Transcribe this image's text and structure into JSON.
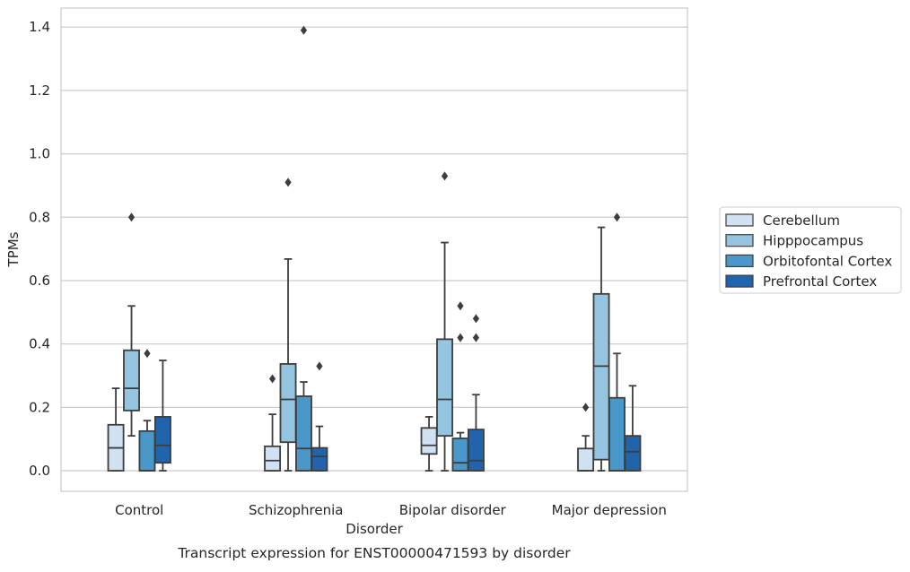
{
  "chart_data": {
    "type": "box",
    "title": "",
    "caption": "Transcript expression for ENST00000471593 by disorder",
    "xlabel": "Disorder",
    "ylabel": "TPMs",
    "ylim": [
      -0.065,
      1.46
    ],
    "yticks": [
      0.0,
      0.2,
      0.4,
      0.6,
      0.8,
      1.0,
      1.2,
      1.4
    ],
    "ytick_labels": [
      "0.0",
      "0.2",
      "0.4",
      "0.6",
      "0.8",
      "1.0",
      "1.2",
      "1.4"
    ],
    "grid": "horizontal",
    "legend_position": "right",
    "categories": [
      "Control",
      "Schizophrenia",
      "Bipolar disorder",
      "Major depression"
    ],
    "series": [
      {
        "name": "Cerebellum",
        "color": "#d0e1f2",
        "boxes": [
          {
            "whislo": 0.0,
            "q1": 0.0,
            "med": 0.072,
            "q3": 0.145,
            "whishi": 0.26,
            "fliers": []
          },
          {
            "whislo": 0.0,
            "q1": 0.0,
            "med": 0.032,
            "q3": 0.077,
            "whishi": 0.178,
            "fliers": [
              0.29
            ]
          },
          {
            "whislo": 0.0,
            "q1": 0.053,
            "med": 0.08,
            "q3": 0.135,
            "whishi": 0.17,
            "fliers": []
          },
          {
            "whislo": 0.0,
            "q1": 0.0,
            "med": 0.0,
            "q3": 0.07,
            "whishi": 0.11,
            "fliers": [
              0.2
            ]
          }
        ]
      },
      {
        "name": "Hipppocampus",
        "color": "#94c4df",
        "boxes": [
          {
            "whislo": 0.11,
            "q1": 0.19,
            "med": 0.26,
            "q3": 0.38,
            "whishi": 0.52,
            "fliers": [
              0.8
            ]
          },
          {
            "whislo": 0.0,
            "q1": 0.09,
            "med": 0.225,
            "q3": 0.337,
            "whishi": 0.668,
            "fliers": [
              0.91
            ]
          },
          {
            "whislo": 0.0,
            "q1": 0.11,
            "med": 0.225,
            "q3": 0.415,
            "whishi": 0.72,
            "fliers": [
              0.93
            ]
          },
          {
            "whislo": 0.0,
            "q1": 0.035,
            "med": 0.33,
            "q3": 0.558,
            "whishi": 0.768,
            "fliers": []
          }
        ]
      },
      {
        "name": "Orbitofontal Cortex",
        "color": "#4a98c9",
        "boxes": [
          {
            "whislo": 0.0,
            "q1": 0.0,
            "med": 0.0,
            "q3": 0.125,
            "whishi": 0.158,
            "fliers": [
              0.37
            ]
          },
          {
            "whislo": 0.0,
            "q1": 0.0,
            "med": 0.07,
            "q3": 0.235,
            "whishi": 0.28,
            "fliers": [
              1.39
            ]
          },
          {
            "whislo": 0.0,
            "q1": 0.0,
            "med": 0.025,
            "q3": 0.102,
            "whishi": 0.12,
            "fliers": [
              0.42,
              0.52
            ]
          },
          {
            "whislo": 0.0,
            "q1": 0.0,
            "med": 0.0,
            "q3": 0.23,
            "whishi": 0.37,
            "fliers": [
              0.8
            ]
          }
        ]
      },
      {
        "name": "Prefrontal Cortex",
        "color": "#2164ab",
        "boxes": [
          {
            "whislo": 0.0,
            "q1": 0.025,
            "med": 0.08,
            "q3": 0.17,
            "whishi": 0.348,
            "fliers": []
          },
          {
            "whislo": 0.0,
            "q1": 0.0,
            "med": 0.045,
            "q3": 0.072,
            "whishi": 0.14,
            "fliers": [
              0.33
            ]
          },
          {
            "whislo": 0.0,
            "q1": 0.0,
            "med": 0.032,
            "q3": 0.13,
            "whishi": 0.24,
            "fliers": [
              0.42,
              0.48
            ]
          },
          {
            "whislo": 0.0,
            "q1": 0.0,
            "med": 0.06,
            "q3": 0.11,
            "whishi": 0.268,
            "fliers": []
          }
        ]
      }
    ]
  }
}
